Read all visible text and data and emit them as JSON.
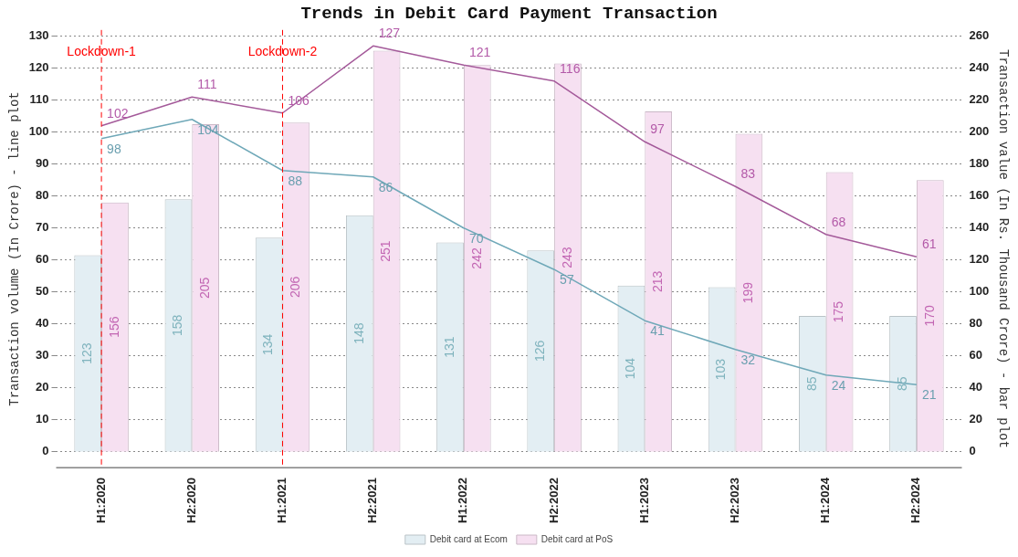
{
  "chart_data": {
    "type": "bar",
    "title": "Trends in Debit Card Payment Transaction",
    "ylabel": "Transaction volume (In Crore) - line plot",
    "y2label": "Transaction value (In Rs. Thousand Crore) - bar plot",
    "categories": [
      "H1:2020",
      "H2:2020",
      "H1:2021",
      "H2:2021",
      "H1:2022",
      "H2:2022",
      "H1:2023",
      "H2:2023",
      "H1:2024",
      "H2:2024"
    ],
    "series": [
      {
        "name": "Debit card at Ecom",
        "axis": "y2",
        "color": "#e3eef3",
        "values": [
          123,
          158,
          134,
          148,
          131,
          126,
          104,
          103,
          85,
          85
        ]
      },
      {
        "name": "Debit card at PoS",
        "axis": "y2",
        "color": "#f6e0f1",
        "values": [
          156,
          205,
          206,
          251,
          242,
          243,
          213,
          199,
          175,
          170
        ]
      },
      {
        "type": "line",
        "color": "#6fa8b8",
        "values": [
          98,
          104,
          88,
          86,
          70,
          57,
          41,
          32,
          24,
          21
        ]
      },
      {
        "type": "line",
        "color": "#a45a9a",
        "values": [
          102,
          111,
          106,
          127,
          121,
          116,
          97,
          83,
          68,
          61
        ]
      }
    ],
    "ylim": [
      -5,
      132
    ],
    "yticks": [
      0,
      10,
      20,
      30,
      40,
      50,
      60,
      70,
      80,
      90,
      100,
      110,
      120,
      130
    ],
    "y2lim": [
      -10,
      264
    ],
    "y2ticks": [
      0,
      20,
      40,
      60,
      80,
      100,
      120,
      140,
      160,
      180,
      200,
      220,
      240,
      260
    ],
    "grid": "y",
    "legend": "bottom",
    "marker": "none",
    "data_labels": true,
    "ref_lines": [
      {
        "axis": "x",
        "value": "H1:2020",
        "label": "Lockdown-1",
        "color": "#ff0000",
        "line_style": "dashed"
      },
      {
        "axis": "x",
        "value": "H1:2021",
        "label": "Lockdown-2",
        "color": "#ff0000",
        "line_style": "dashed"
      }
    ]
  }
}
